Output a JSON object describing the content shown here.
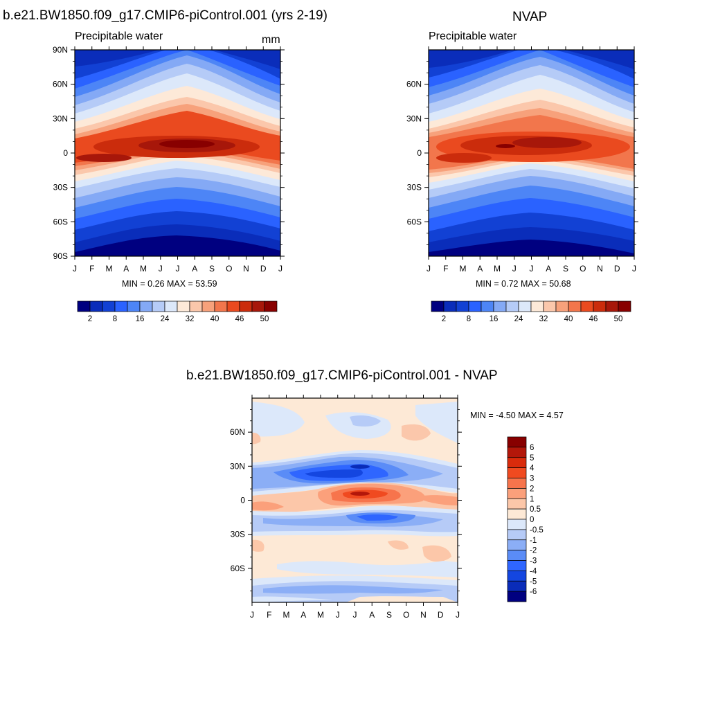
{
  "panel1": {
    "title": "b.e21.BW1850.f09_g17.CMIP6-piControl.001 (yrs 2-19)",
    "left_label": "Precipitable water",
    "right_label": "mm",
    "stats": "MIN =   0.26 MAX =  53.59"
  },
  "panel2": {
    "title": "NVAP",
    "left_label": "Precipitable water",
    "stats": "MIN =   0.72 MAX =  50.68"
  },
  "panel3": {
    "title": "b.e21.BW1850.f09_g17.CMIP6-piControl.001 - NVAP",
    "stats": "MIN =  -4.50 MAX =   4.57"
  },
  "chart_data": [
    {
      "type": "heatmap",
      "title": "b.e21.BW1850.f09_g17.CMIP6-piControl.001 (yrs 2-19)",
      "subtitle": "Precipitable water",
      "units": "mm",
      "x_ticks": [
        "J",
        "F",
        "M",
        "A",
        "M",
        "J",
        "J",
        "A",
        "S",
        "O",
        "N",
        "D",
        "J"
      ],
      "y_ticks": [
        "90N",
        "60N",
        "30N",
        "0",
        "30S",
        "60S",
        "90S"
      ],
      "ylim": [
        -90,
        90
      ],
      "min": 0.26,
      "max": 53.59,
      "colorbar_labels": [
        "2",
        "8",
        "16",
        "24",
        "32",
        "40",
        "46",
        "50"
      ],
      "colorbar_levels": [
        2,
        5,
        8,
        12,
        16,
        20,
        24,
        28,
        32,
        36,
        40,
        43,
        46,
        48,
        50
      ],
      "colorbar_colors": [
        "#000080",
        "#0a2dba",
        "#1241d4",
        "#2a62ff",
        "#4d85f6",
        "#84a9f5",
        "#b5cbf7",
        "#dce8fa",
        "#fde9d8",
        "#fbc7ab",
        "#f7a17b",
        "#f2764c",
        "#ea4a1f",
        "#cb2c0c",
        "#a7170a",
        "#880000"
      ]
    },
    {
      "type": "heatmap",
      "title": "NVAP",
      "subtitle": "Precipitable water",
      "x_ticks": [
        "J",
        "F",
        "M",
        "A",
        "M",
        "J",
        "J",
        "A",
        "S",
        "O",
        "N",
        "D",
        "J"
      ],
      "y_ticks": [
        "60N",
        "30N",
        "0",
        "30S",
        "60S"
      ],
      "ylim": [
        -90,
        90
      ],
      "min": 0.72,
      "max": 50.68,
      "colorbar_labels": [
        "2",
        "8",
        "16",
        "24",
        "32",
        "40",
        "46",
        "50"
      ]
    },
    {
      "type": "heatmap",
      "title": "b.e21.BW1850.f09_g17.CMIP6-piControl.001 - NVAP",
      "x_ticks": [
        "J",
        "F",
        "M",
        "A",
        "M",
        "J",
        "J",
        "A",
        "S",
        "O",
        "N",
        "D",
        "J"
      ],
      "y_ticks": [
        "60N",
        "30N",
        "0",
        "30S",
        "60S"
      ],
      "ylim": [
        -90,
        90
      ],
      "min": -4.5,
      "max": 4.57,
      "colorbar_labels": [
        "6",
        "5",
        "4",
        "3",
        "2",
        "1",
        "0.5",
        "0",
        "-0.5",
        "-1",
        "-2",
        "-3",
        "-4",
        "-5",
        "-6"
      ],
      "colorbar_colors": [
        "#880000",
        "#b3170a",
        "#d92b0c",
        "#f04a20",
        "#f7744c",
        "#fba07b",
        "#fcc7a9",
        "#fde9d6",
        "#dce8fa",
        "#b6cbf7",
        "#8baef6",
        "#5a8cf7",
        "#2f66ff",
        "#1446e0",
        "#0a2cb9",
        "#000080"
      ]
    }
  ]
}
